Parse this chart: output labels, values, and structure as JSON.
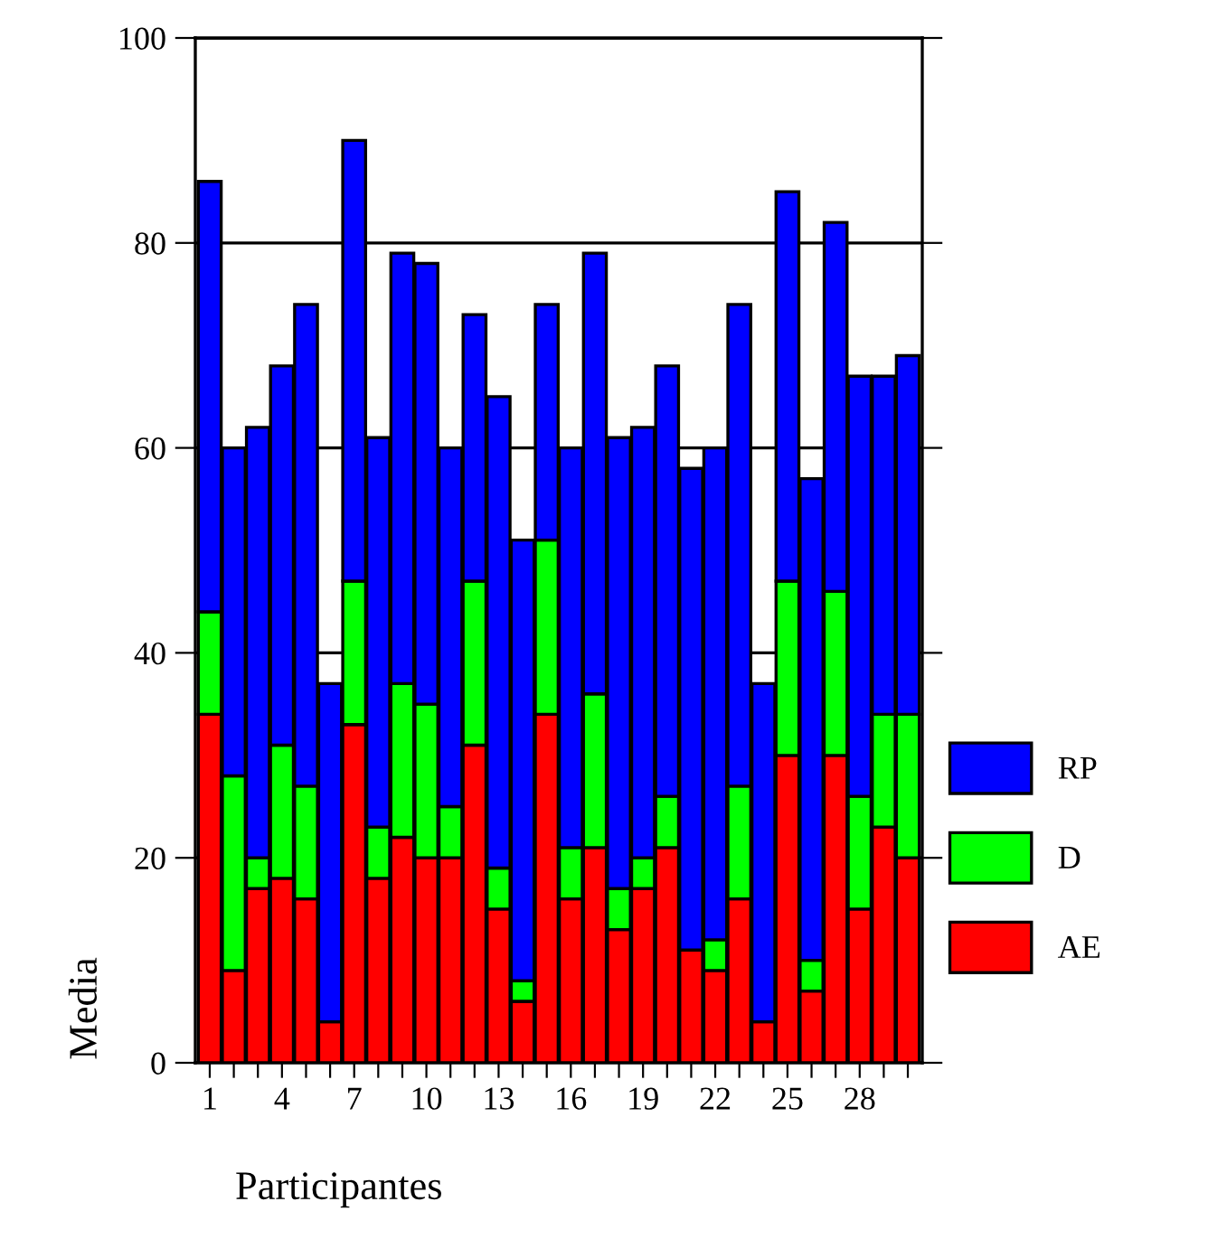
{
  "chart_data": {
    "type": "bar",
    "stacked": true,
    "xlabel": "Participantes",
    "ylabel": "Media",
    "categories": [
      "1",
      null,
      null,
      "4",
      null,
      null,
      "7",
      null,
      null,
      "10",
      null,
      null,
      "13",
      null,
      null,
      "16",
      null,
      null,
      "19",
      null,
      null,
      "22",
      null,
      null,
      "25",
      null,
      null,
      "28",
      null,
      null
    ],
    "series": [
      {
        "name": "AE",
        "color": "#ff0000",
        "values": [
          34,
          9,
          17,
          18,
          16,
          4,
          33,
          18,
          22,
          20,
          20,
          31,
          15,
          6,
          34,
          16,
          21,
          13,
          17,
          21,
          11,
          9,
          16,
          4,
          30,
          7,
          30,
          15,
          23,
          20
        ]
      },
      {
        "name": "D",
        "color": "#00ff00",
        "values": [
          10,
          19,
          3,
          13,
          11,
          0,
          14,
          5,
          15,
          15,
          5,
          16,
          4,
          2,
          17,
          5,
          15,
          4,
          3,
          5,
          0,
          3,
          11,
          0,
          17,
          3,
          16,
          11,
          11,
          14
        ]
      },
      {
        "name": "RP",
        "color": "#0000ff",
        "values": [
          42,
          32,
          42,
          37,
          47,
          33,
          43,
          38,
          42,
          43,
          35,
          26,
          46,
          43,
          23,
          39,
          43,
          44,
          42,
          42,
          47,
          48,
          47,
          33,
          38,
          47,
          36,
          41,
          33,
          35
        ]
      }
    ],
    "ylim": [
      0,
      100
    ],
    "yticks": [
      0,
      20,
      40,
      60,
      80,
      100
    ],
    "grid": "y",
    "legend": "right"
  }
}
